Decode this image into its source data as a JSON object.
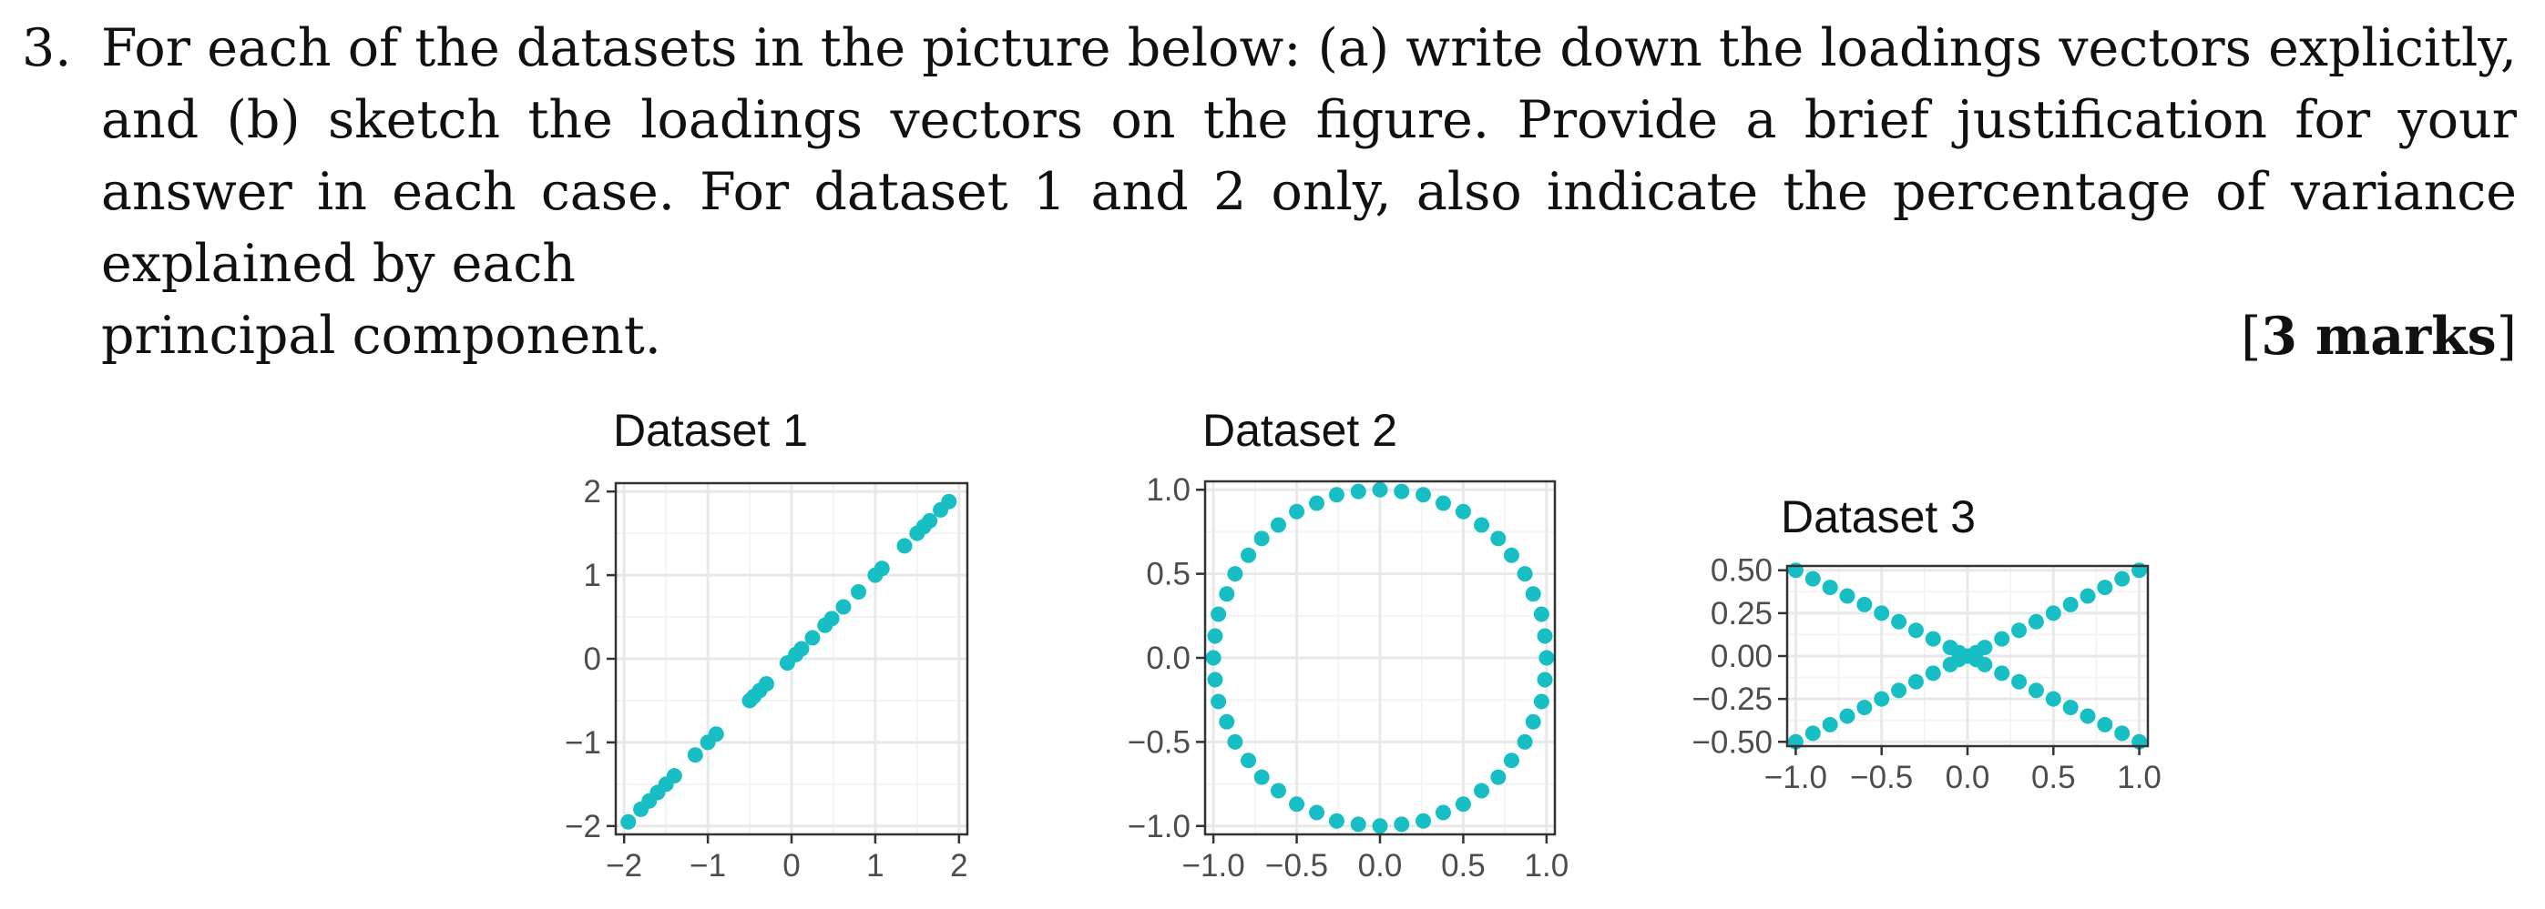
{
  "question": {
    "number": "3.",
    "text": "For each of the datasets in the picture below: (a) write down the loadings vectors explicitly, and (b) sketch the loadings vectors on the figure. Provide a brief justification for your answer in each case. For dataset 1 and 2 only, also indicate the percentage of variance explained by each",
    "last_line": "principal component.",
    "marks_open": "[",
    "marks": "3 marks",
    "marks_close": "]"
  },
  "colors": {
    "points": "#17bfc4",
    "grid_major": "#e8e8e8",
    "grid_minor": "#f3f3f3",
    "axis": "#333333"
  },
  "chart_data": [
    {
      "type": "scatter",
      "title": "Dataset 1",
      "xlabel": "",
      "ylabel": "",
      "xlim": [
        -2.1,
        2.1
      ],
      "ylim": [
        -2.1,
        2.1
      ],
      "xticks": [
        -2,
        -1,
        0,
        1,
        2
      ],
      "yticks": [
        -2,
        -1,
        0,
        1,
        2
      ],
      "xtick_labels": [
        "−2",
        "−1",
        "0",
        "1",
        "2"
      ],
      "ytick_labels": [
        "−2",
        "−1",
        "0",
        "1",
        "2"
      ],
      "grid": true,
      "legend": "none",
      "points": [
        [
          -1.95,
          -1.95
        ],
        [
          -1.8,
          -1.8
        ],
        [
          -1.7,
          -1.7
        ],
        [
          -1.6,
          -1.6
        ],
        [
          -1.5,
          -1.5
        ],
        [
          -1.4,
          -1.4
        ],
        [
          -1.15,
          -1.15
        ],
        [
          -1.0,
          -1.0
        ],
        [
          -0.9,
          -0.9
        ],
        [
          -0.5,
          -0.5
        ],
        [
          -0.45,
          -0.45
        ],
        [
          -0.38,
          -0.38
        ],
        [
          -0.3,
          -0.3
        ],
        [
          -0.05,
          -0.05
        ],
        [
          0.05,
          0.05
        ],
        [
          0.12,
          0.12
        ],
        [
          0.25,
          0.25
        ],
        [
          0.4,
          0.4
        ],
        [
          0.48,
          0.48
        ],
        [
          0.62,
          0.62
        ],
        [
          0.8,
          0.8
        ],
        [
          1.0,
          1.0
        ],
        [
          1.08,
          1.08
        ],
        [
          1.35,
          1.35
        ],
        [
          1.5,
          1.5
        ],
        [
          1.58,
          1.58
        ],
        [
          1.65,
          1.65
        ],
        [
          1.78,
          1.78
        ],
        [
          1.88,
          1.88
        ]
      ]
    },
    {
      "type": "scatter",
      "title": "Dataset 2",
      "xlabel": "",
      "ylabel": "",
      "xlim": [
        -1.05,
        1.05
      ],
      "ylim": [
        -1.05,
        1.05
      ],
      "xticks": [
        -1.0,
        -0.5,
        0.0,
        0.5,
        1.0
      ],
      "yticks": [
        -1.0,
        -0.5,
        0.0,
        0.5,
        1.0
      ],
      "xtick_labels": [
        "−1.0",
        "−0.5",
        "0.0",
        "0.5",
        "1.0"
      ],
      "ytick_labels": [
        "−1.0",
        "−0.5",
        "0.0",
        "0.5",
        "1.0"
      ],
      "grid": true,
      "legend": "none",
      "points": [
        [
          1.0,
          0.0
        ],
        [
          0.99,
          0.13
        ],
        [
          0.97,
          0.26
        ],
        [
          0.92,
          0.38
        ],
        [
          0.87,
          0.5
        ],
        [
          0.79,
          0.61
        ],
        [
          0.71,
          0.71
        ],
        [
          0.61,
          0.79
        ],
        [
          0.5,
          0.87
        ],
        [
          0.38,
          0.92
        ],
        [
          0.26,
          0.97
        ],
        [
          0.13,
          0.99
        ],
        [
          0.0,
          1.0
        ],
        [
          -0.13,
          0.99
        ],
        [
          -0.26,
          0.97
        ],
        [
          -0.38,
          0.92
        ],
        [
          -0.5,
          0.87
        ],
        [
          -0.61,
          0.79
        ],
        [
          -0.71,
          0.71
        ],
        [
          -0.79,
          0.61
        ],
        [
          -0.87,
          0.5
        ],
        [
          -0.92,
          0.38
        ],
        [
          -0.97,
          0.26
        ],
        [
          -0.99,
          0.13
        ],
        [
          -1.0,
          0.0
        ],
        [
          -0.99,
          -0.13
        ],
        [
          -0.97,
          -0.26
        ],
        [
          -0.92,
          -0.38
        ],
        [
          -0.87,
          -0.5
        ],
        [
          -0.79,
          -0.61
        ],
        [
          -0.71,
          -0.71
        ],
        [
          -0.61,
          -0.79
        ],
        [
          -0.5,
          -0.87
        ],
        [
          -0.38,
          -0.92
        ],
        [
          -0.26,
          -0.97
        ],
        [
          -0.13,
          -0.99
        ],
        [
          0.0,
          -1.0
        ],
        [
          0.13,
          -0.99
        ],
        [
          0.26,
          -0.97
        ],
        [
          0.38,
          -0.92
        ],
        [
          0.5,
          -0.87
        ],
        [
          0.61,
          -0.79
        ],
        [
          0.71,
          -0.71
        ],
        [
          0.79,
          -0.61
        ],
        [
          0.87,
          -0.5
        ],
        [
          0.92,
          -0.38
        ],
        [
          0.97,
          -0.26
        ],
        [
          0.99,
          -0.13
        ]
      ]
    },
    {
      "type": "scatter",
      "title": "Dataset 3",
      "xlabel": "",
      "ylabel": "",
      "xlim": [
        -1.05,
        1.05
      ],
      "ylim": [
        -0.525,
        0.525
      ],
      "xticks": [
        -1.0,
        -0.5,
        0.0,
        0.5,
        1.0
      ],
      "yticks": [
        -0.5,
        -0.25,
        0.0,
        0.25,
        0.5
      ],
      "xtick_labels": [
        "−1.0",
        "−0.5",
        "0.0",
        "0.5",
        "1.0"
      ],
      "ytick_labels": [
        "−0.50",
        "−0.25",
        "0.00",
        "0.25",
        "0.50"
      ],
      "grid": true,
      "legend": "none",
      "points": [
        [
          -1.0,
          0.5
        ],
        [
          -0.9,
          0.45
        ],
        [
          -0.8,
          0.4
        ],
        [
          -0.7,
          0.35
        ],
        [
          -0.6,
          0.3
        ],
        [
          -0.5,
          0.25
        ],
        [
          -0.4,
          0.2
        ],
        [
          -0.3,
          0.15
        ],
        [
          -0.2,
          0.1
        ],
        [
          -0.1,
          0.05
        ],
        [
          0.0,
          0.0
        ],
        [
          0.1,
          -0.05
        ],
        [
          0.2,
          -0.1
        ],
        [
          0.3,
          -0.15
        ],
        [
          0.4,
          -0.2
        ],
        [
          0.5,
          -0.25
        ],
        [
          0.6,
          -0.3
        ],
        [
          0.7,
          -0.35
        ],
        [
          0.8,
          -0.4
        ],
        [
          0.9,
          -0.45
        ],
        [
          1.0,
          -0.5
        ],
        [
          -1.0,
          -0.5
        ],
        [
          -0.9,
          -0.45
        ],
        [
          -0.8,
          -0.4
        ],
        [
          -0.7,
          -0.35
        ],
        [
          -0.6,
          -0.3
        ],
        [
          -0.5,
          -0.25
        ],
        [
          -0.4,
          -0.2
        ],
        [
          -0.3,
          -0.15
        ],
        [
          -0.2,
          -0.1
        ],
        [
          -0.1,
          -0.05
        ],
        [
          0.1,
          0.05
        ],
        [
          0.2,
          0.1
        ],
        [
          0.3,
          0.15
        ],
        [
          0.4,
          0.2
        ],
        [
          0.5,
          0.25
        ],
        [
          0.6,
          0.3
        ],
        [
          0.7,
          0.35
        ],
        [
          0.8,
          0.4
        ],
        [
          0.9,
          0.45
        ],
        [
          1.0,
          0.5
        ],
        [
          -0.05,
          0.02
        ],
        [
          0.05,
          -0.02
        ],
        [
          -0.05,
          -0.02
        ],
        [
          0.05,
          0.02
        ]
      ]
    }
  ]
}
